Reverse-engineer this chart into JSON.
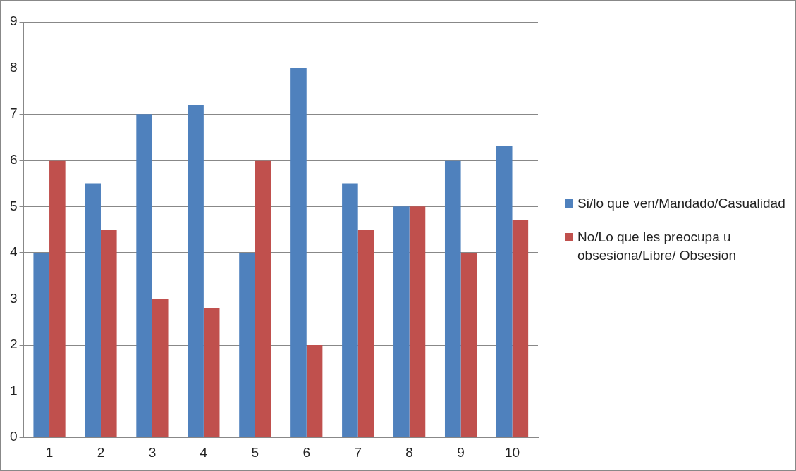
{
  "chart_data": {
    "type": "bar",
    "categories": [
      "1",
      "2",
      "3",
      "4",
      "5",
      "6",
      "7",
      "8",
      "9",
      "10"
    ],
    "series": [
      {
        "name": "Si/lo que ven/Mandado/Casualidad",
        "color": "#4f81bd",
        "values": [
          4,
          5.5,
          7,
          7.2,
          4,
          8,
          5.5,
          5,
          6,
          6.3
        ]
      },
      {
        "name": "No/Lo que les preocupa u obsesiona/Libre/ Obsesion",
        "color": "#c0504d",
        "values": [
          6,
          4.5,
          3,
          2.8,
          6,
          2,
          4.5,
          5,
          4,
          4.7
        ]
      }
    ],
    "ylim": [
      0,
      9
    ],
    "yticks": [
      0,
      1,
      2,
      3,
      4,
      5,
      6,
      7,
      8,
      9
    ],
    "grid": "y",
    "legend": "right"
  }
}
